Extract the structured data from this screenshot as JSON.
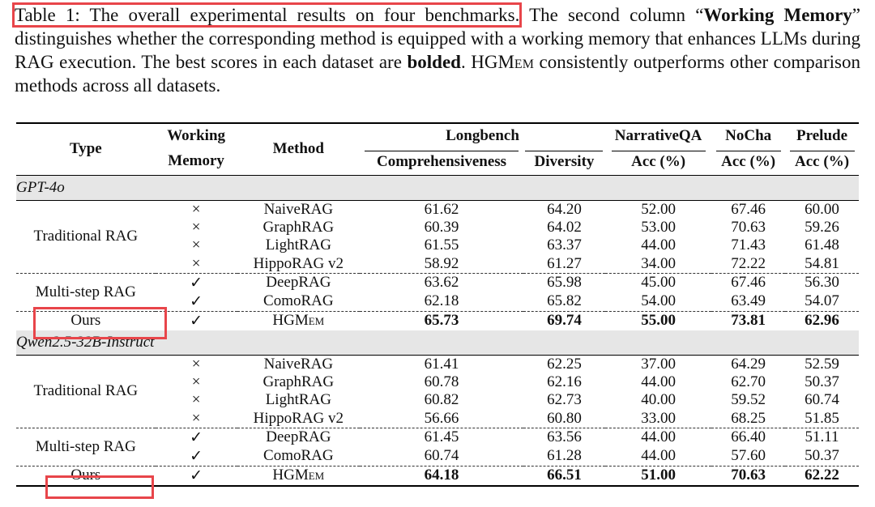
{
  "caption": {
    "label": "Table 1: The overall experimental results on four benchmarks.",
    "text_a": " The second column “",
    "bold_a": "Working Memory",
    "text_b": "” distinguishes whether the corresponding method is equipped with a working memory that enhances LLMs during RAG execution. The best scores in each dataset are ",
    "bold_b": "bolded",
    "text_c": ". ",
    "model_name": "HGMem",
    "text_d": " consistently outperforms other comparison methods across all datasets."
  },
  "header": {
    "type": "Type",
    "working_memory_1": "Working",
    "working_memory_2": "Memory",
    "method": "Method",
    "longbench": "Longbench",
    "narrativeqa": "NarrativeQA",
    "nocha": "NoCha",
    "prelude": "Prelude",
    "comprehensiveness": "Comprehensiveness",
    "diversity": "Diversity",
    "acc_nqa": "Acc (%)",
    "acc_nocha": "Acc (%)",
    "acc_prelude": "Acc (%)"
  },
  "groups": [
    {
      "name": "GPT-4o",
      "types": {
        "traditional": "Traditional RAG",
        "multistep": "Multi-step RAG",
        "ours": "Ours"
      },
      "rows": [
        {
          "wm": "×",
          "method": "NaiveRAG",
          "comp": "61.62",
          "div": "64.20",
          "nqa": "52.00",
          "nocha": "67.46",
          "prelude": "60.00"
        },
        {
          "wm": "×",
          "method": "GraphRAG",
          "comp": "60.39",
          "div": "64.02",
          "nqa": "53.00",
          "nocha": "70.63",
          "prelude": "59.26"
        },
        {
          "wm": "×",
          "method": "LightRAG",
          "comp": "61.55",
          "div": "63.37",
          "nqa": "44.00",
          "nocha": "71.43",
          "prelude": "61.48"
        },
        {
          "wm": "×",
          "method": "HippoRAG v2",
          "comp": "58.92",
          "div": "61.27",
          "nqa": "34.00",
          "nocha": "72.22",
          "prelude": "54.81"
        },
        {
          "wm": "✓",
          "method": "DeepRAG",
          "comp": "63.62",
          "div": "65.98",
          "nqa": "45.00",
          "nocha": "67.46",
          "prelude": "56.30"
        },
        {
          "wm": "✓",
          "method": "ComoRAG",
          "comp": "62.18",
          "div": "65.82",
          "nqa": "54.00",
          "nocha": "63.49",
          "prelude": "54.07"
        },
        {
          "wm": "✓",
          "method": "HGMem",
          "comp": "65.73",
          "div": "69.74",
          "nqa": "55.00",
          "nocha": "73.81",
          "prelude": "62.96"
        }
      ]
    },
    {
      "name": "Qwen2.5-32B-Instruct",
      "types": {
        "traditional": "Traditional RAG",
        "multistep": "Multi-step RAG",
        "ours": "Ours"
      },
      "rows": [
        {
          "wm": "×",
          "method": "NaiveRAG",
          "comp": "61.41",
          "div": "62.25",
          "nqa": "37.00",
          "nocha": "64.29",
          "prelude": "52.59"
        },
        {
          "wm": "×",
          "method": "GraphRAG",
          "comp": "60.78",
          "div": "62.16",
          "nqa": "44.00",
          "nocha": "62.70",
          "prelude": "50.37"
        },
        {
          "wm": "×",
          "method": "LightRAG",
          "comp": "60.82",
          "div": "62.73",
          "nqa": "40.00",
          "nocha": "59.52",
          "prelude": "60.74"
        },
        {
          "wm": "×",
          "method": "HippoRAG v2",
          "comp": "56.66",
          "div": "60.80",
          "nqa": "33.00",
          "nocha": "68.25",
          "prelude": "51.85"
        },
        {
          "wm": "✓",
          "method": "DeepRAG",
          "comp": "61.45",
          "div": "63.56",
          "nqa": "44.00",
          "nocha": "66.40",
          "prelude": "51.11"
        },
        {
          "wm": "✓",
          "method": "ComoRAG",
          "comp": "60.74",
          "div": "61.28",
          "nqa": "44.00",
          "nocha": "57.60",
          "prelude": "50.37"
        },
        {
          "wm": "✓",
          "method": "HGMem",
          "comp": "64.18",
          "div": "66.51",
          "nqa": "51.00",
          "nocha": "70.63",
          "prelude": "62.22"
        }
      ]
    }
  ],
  "highlight_color": "#e8454a"
}
